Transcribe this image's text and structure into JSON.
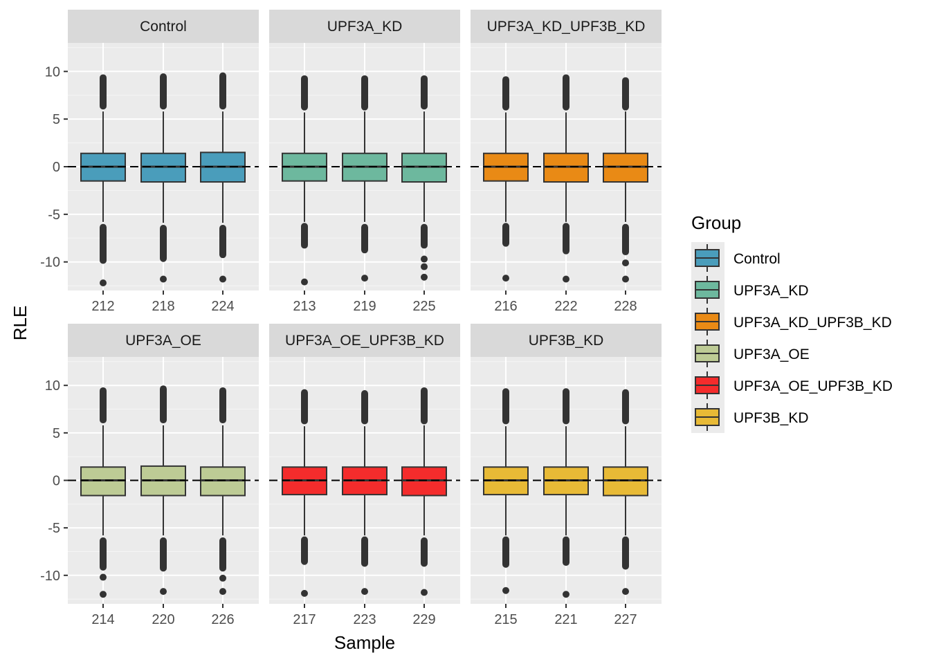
{
  "chart_data": {
    "type": "boxplot",
    "layout": "facet-grid-2x3",
    "xlabel": "Sample",
    "ylabel": "RLE",
    "ylim": [
      -13,
      13
    ],
    "yticks": [
      10,
      5,
      0,
      -5,
      -10
    ],
    "ytick_labels": [
      "10",
      "5",
      "0",
      "-5",
      "-10"
    ],
    "reference_line": {
      "y": 0,
      "style": "dashed"
    },
    "grid": true,
    "legend": {
      "title": "Group",
      "position": "right",
      "entries": [
        {
          "label": "Control",
          "color": "#4A9DBB"
        },
        {
          "label": "UPF3A_KD",
          "color": "#6DB89E"
        },
        {
          "label": "UPF3A_KD_UPF3B_KD",
          "color": "#E98A15"
        },
        {
          "label": "UPF3A_OE",
          "color": "#BDCB95"
        },
        {
          "label": "UPF3A_OE_UPF3B_KD",
          "color": "#F42C2C"
        },
        {
          "label": "UPF3B_KD",
          "color": "#E8BA36"
        }
      ]
    },
    "facets": [
      {
        "title": "Control",
        "color": "#4A9DBB",
        "boxes": [
          {
            "sample": "212",
            "q1": -1.5,
            "median": 0,
            "q3": 1.4,
            "whisker_low": -5.8,
            "whisker_high": 5.8,
            "out_low_max": -6.0,
            "out_low_min": -10.2,
            "out_high_min": 6.0,
            "out_high_max": 9.7,
            "extremes": [
              -12.2
            ]
          },
          {
            "sample": "218",
            "q1": -1.6,
            "median": 0,
            "q3": 1.4,
            "whisker_low": -5.9,
            "whisker_high": 5.8,
            "out_low_max": -6.1,
            "out_low_min": -10.0,
            "out_high_min": 6.0,
            "out_high_max": 9.8,
            "extremes": [
              -11.8
            ]
          },
          {
            "sample": "224",
            "q1": -1.6,
            "median": 0,
            "q3": 1.5,
            "whisker_low": -5.9,
            "whisker_high": 5.8,
            "out_low_max": -6.1,
            "out_low_min": -9.6,
            "out_high_min": 6.0,
            "out_high_max": 9.9,
            "extremes": [
              -11.8
            ]
          }
        ]
      },
      {
        "title": "UPF3A_KD",
        "color": "#6DB89E",
        "boxes": [
          {
            "sample": "213",
            "q1": -1.5,
            "median": 0,
            "q3": 1.4,
            "whisker_low": -5.8,
            "whisker_high": 5.7,
            "out_low_max": -5.9,
            "out_low_min": -8.6,
            "out_high_min": 5.9,
            "out_high_max": 9.6,
            "extremes": [
              -12.1
            ]
          },
          {
            "sample": "219",
            "q1": -1.5,
            "median": 0,
            "q3": 1.4,
            "whisker_low": -5.8,
            "whisker_high": 5.8,
            "out_low_max": -6.0,
            "out_low_min": -9.1,
            "out_high_min": 5.9,
            "out_high_max": 9.6,
            "extremes": [
              -11.7
            ]
          },
          {
            "sample": "225",
            "q1": -1.6,
            "median": 0,
            "q3": 1.4,
            "whisker_low": -5.8,
            "whisker_high": 5.8,
            "out_low_max": -6.0,
            "out_low_min": -8.6,
            "out_high_min": 6.0,
            "out_high_max": 9.6,
            "extremes": [
              -9.7,
              -10.5,
              -11.6
            ]
          }
        ]
      },
      {
        "title": "UPF3A_KD_UPF3B_KD",
        "color": "#E98A15",
        "boxes": [
          {
            "sample": "216",
            "q1": -1.5,
            "median": 0,
            "q3": 1.4,
            "whisker_low": -5.8,
            "whisker_high": 5.7,
            "out_low_max": -5.9,
            "out_low_min": -8.4,
            "out_high_min": 5.9,
            "out_high_max": 9.5,
            "extremes": [
              -11.7
            ]
          },
          {
            "sample": "222",
            "q1": -1.6,
            "median": 0,
            "q3": 1.4,
            "whisker_low": -5.8,
            "whisker_high": 5.7,
            "out_low_max": -5.9,
            "out_low_min": -9.2,
            "out_high_min": 5.9,
            "out_high_max": 9.7,
            "extremes": [
              -11.8
            ]
          },
          {
            "sample": "228",
            "q1": -1.6,
            "median": 0,
            "q3": 1.4,
            "whisker_low": -5.8,
            "whisker_high": 5.8,
            "out_low_max": -6.0,
            "out_low_min": -9.3,
            "out_high_min": 5.9,
            "out_high_max": 9.4,
            "extremes": [
              -10.1,
              -11.8
            ]
          }
        ]
      },
      {
        "title": "UPF3A_OE",
        "color": "#BDCB95",
        "boxes": [
          {
            "sample": "214",
            "q1": -1.6,
            "median": 0,
            "q3": 1.4,
            "whisker_low": -5.8,
            "whisker_high": 5.8,
            "out_low_max": -6.0,
            "out_low_min": -9.5,
            "out_high_min": 6.0,
            "out_high_max": 9.8,
            "extremes": [
              -10.2,
              -12.0
            ]
          },
          {
            "sample": "220",
            "q1": -1.6,
            "median": 0,
            "q3": 1.5,
            "whisker_low": -5.8,
            "whisker_high": 5.8,
            "out_low_max": -6.0,
            "out_low_min": -9.6,
            "out_high_min": 6.0,
            "out_high_max": 10.0,
            "extremes": [
              -11.7
            ]
          },
          {
            "sample": "226",
            "q1": -1.6,
            "median": 0,
            "q3": 1.4,
            "whisker_low": -5.8,
            "whisker_high": 5.8,
            "out_low_max": -6.0,
            "out_low_min": -9.6,
            "out_high_min": 6.0,
            "out_high_max": 9.8,
            "extremes": [
              -10.3,
              -11.7
            ]
          }
        ]
      },
      {
        "title": "UPF3A_OE_UPF3B_KD",
        "color": "#F42C2C",
        "boxes": [
          {
            "sample": "217",
            "q1": -1.5,
            "median": 0,
            "q3": 1.4,
            "whisker_low": -5.8,
            "whisker_high": 5.7,
            "out_low_max": -5.9,
            "out_low_min": -8.9,
            "out_high_min": 5.9,
            "out_high_max": 9.6,
            "extremes": [
              -11.9
            ]
          },
          {
            "sample": "223",
            "q1": -1.5,
            "median": 0,
            "q3": 1.4,
            "whisker_low": -5.8,
            "whisker_high": 5.7,
            "out_low_max": -5.9,
            "out_low_min": -9.1,
            "out_high_min": 5.9,
            "out_high_max": 9.5,
            "extremes": [
              -11.7
            ]
          },
          {
            "sample": "229",
            "q1": -1.6,
            "median": 0,
            "q3": 1.4,
            "whisker_low": -5.8,
            "whisker_high": 5.8,
            "out_low_max": -6.0,
            "out_low_min": -9.1,
            "out_high_min": 5.9,
            "out_high_max": 9.8,
            "extremes": [
              -11.8
            ]
          }
        ]
      },
      {
        "title": "UPF3B_KD",
        "color": "#E8BA36",
        "boxes": [
          {
            "sample": "215",
            "q1": -1.5,
            "median": 0,
            "q3": 1.4,
            "whisker_low": -5.8,
            "whisker_high": 5.7,
            "out_low_max": -5.9,
            "out_low_min": -9.2,
            "out_high_min": 5.9,
            "out_high_max": 9.7,
            "extremes": [
              -11.6
            ]
          },
          {
            "sample": "221",
            "q1": -1.5,
            "median": 0,
            "q3": 1.4,
            "whisker_low": -5.8,
            "whisker_high": 5.7,
            "out_low_max": -5.9,
            "out_low_min": -9.0,
            "out_high_min": 5.9,
            "out_high_max": 9.7,
            "extremes": [
              -12.0
            ]
          },
          {
            "sample": "227",
            "q1": -1.6,
            "median": 0,
            "q3": 1.4,
            "whisker_low": -5.8,
            "whisker_high": 5.7,
            "out_low_max": -5.9,
            "out_low_min": -9.4,
            "out_high_min": 5.9,
            "out_high_max": 9.6,
            "extremes": [
              -11.7
            ]
          }
        ]
      }
    ]
  }
}
